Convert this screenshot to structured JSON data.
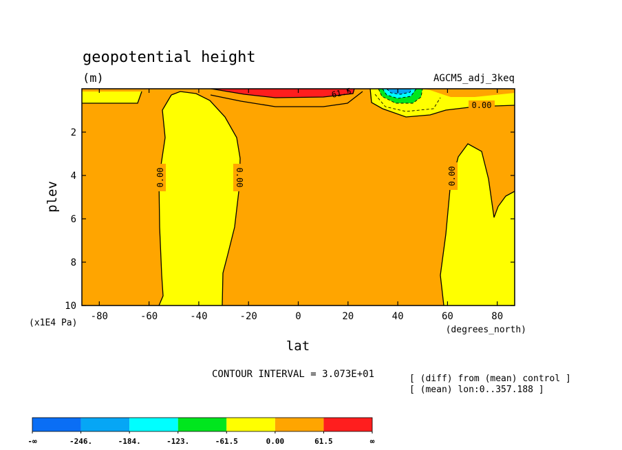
{
  "chart_data": {
    "type": "contour",
    "title": "geopotential height",
    "units": "(m)",
    "run_label": "AGCM5_adj_3keq",
    "xlabel": "lat",
    "xunits": "(degrees_north)",
    "ylabel": "plev",
    "yunits": "(x1E4 Pa)",
    "xlim": [
      -87,
      87
    ],
    "ylim": [
      10,
      0
    ],
    "xticks": [
      "-80",
      "-60",
      "-40",
      "-20",
      "0",
      "20",
      "40",
      "60",
      "80"
    ],
    "xtick_values": [
      -80,
      -60,
      -40,
      -20,
      0,
      20,
      40,
      60,
      80
    ],
    "yticks": [
      "2",
      "4",
      "6",
      "8",
      "10"
    ],
    "ytick_values": [
      2,
      4,
      6,
      8,
      10
    ],
    "contour_labels": [
      "0.00",
      "0.00",
      "0.00",
      "0.00",
      "61.5"
    ],
    "contour_interval_text": "CONTOUR INTERVAL = 3.073E+01",
    "notes": [
      "[ (diff) from (mean) control ]",
      "[ (mean) lon:0..357.188 ]"
    ],
    "colorbar": {
      "colors": [
        "#0a6ef5",
        "#06a6f5",
        "#00ffff",
        "#00e61e",
        "#ffff00",
        "#ffa500",
        "#ff1e1e"
      ],
      "labels": [
        "-∞",
        "-246.",
        "-184.",
        "-123.",
        "-61.5",
        "0.00",
        "61.5",
        "∞"
      ]
    },
    "background_color": "#ffa500"
  }
}
